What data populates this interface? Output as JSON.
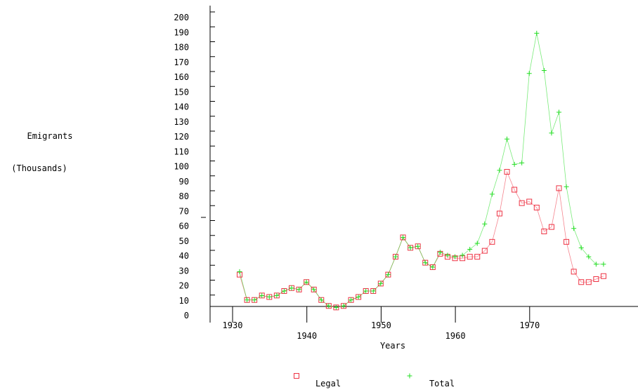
{
  "chart_data": {
    "type": "line",
    "title": "",
    "xlabel": "Years",
    "ylabel": [
      "Emigrants",
      "(Thousands)"
    ],
    "xlim": [
      1926,
      1979
    ],
    "ylim": [
      0,
      200
    ],
    "x_ticks": [
      {
        "value": 1930,
        "label": "1930",
        "row": "upper"
      },
      {
        "value": 1940,
        "label": "1940",
        "row": "lower"
      },
      {
        "value": 1950,
        "label": "1950",
        "row": "upper"
      },
      {
        "value": 1960,
        "label": "1960",
        "row": "lower"
      },
      {
        "value": 1970,
        "label": "1970",
        "row": "upper"
      }
    ],
    "y_ticks": [
      0,
      10,
      20,
      30,
      40,
      50,
      60,
      70,
      80,
      90,
      100,
      110,
      120,
      130,
      140,
      150,
      160,
      170,
      180,
      190,
      200
    ],
    "grid": false,
    "legend": "bottom",
    "x": [
      1930,
      1931,
      1932,
      1933,
      1934,
      1935,
      1936,
      1937,
      1938,
      1939,
      1940,
      1941,
      1942,
      1943,
      1944,
      1945,
      1946,
      1947,
      1948,
      1949,
      1950,
      1951,
      1952,
      1953,
      1954,
      1955,
      1956,
      1957,
      1958,
      1959,
      1960,
      1961,
      1962,
      1963,
      1964,
      1965,
      1966,
      1967,
      1968,
      1969,
      1970,
      1971,
      1972,
      1973,
      1974,
      1975,
      1976,
      1977,
      1978,
      1979
    ],
    "series": [
      {
        "name": "Legal",
        "color": "#ee3344",
        "marker": "square",
        "values": [
          27,
          10,
          10,
          13,
          12,
          13,
          16,
          18,
          17,
          22,
          17,
          10,
          6,
          5,
          6,
          10,
          12,
          16,
          16,
          21,
          27,
          39,
          52,
          45,
          46,
          35,
          32,
          41,
          39,
          38,
          38,
          39,
          39,
          43,
          49,
          68,
          96,
          84,
          75,
          76,
          72,
          56,
          59,
          85,
          49,
          29,
          22,
          22,
          24,
          26
        ]
      },
      {
        "name": "Total",
        "color": "#22dd22",
        "marker": "plus",
        "values": [
          29,
          10,
          10,
          13,
          12,
          13,
          16,
          18,
          17,
          22,
          17,
          10,
          6,
          5,
          6,
          10,
          12,
          16,
          16,
          21,
          27,
          39,
          52,
          45,
          46,
          35,
          32,
          42,
          40,
          39,
          40,
          44,
          48,
          61,
          81,
          97,
          118,
          101,
          102,
          162,
          189,
          164,
          122,
          136,
          86,
          58,
          45,
          39,
          34,
          34
        ]
      }
    ]
  }
}
